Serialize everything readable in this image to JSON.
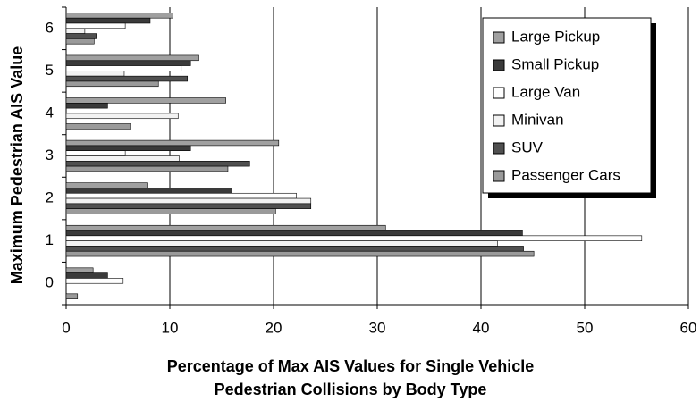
{
  "chart_data": {
    "type": "bar",
    "orientation": "horizontal",
    "x_label": [
      "Percentage of Max AIS Values for Single Vehicle",
      "Pedestrian Collisions by Body Type"
    ],
    "y_label": "Maximum Pedestrian AIS Value",
    "categories": [
      "0",
      "1",
      "2",
      "3",
      "4",
      "5",
      "6"
    ],
    "series": [
      {
        "name": "Large Pickup",
        "color": "#a0a0a0",
        "values": [
          2.6,
          30.8,
          7.8,
          20.5,
          15.4,
          12.8,
          10.3
        ]
      },
      {
        "name": "Small Pickup",
        "color": "#3a3a3a",
        "values": [
          4.0,
          44.0,
          16.0,
          12.0,
          4.0,
          12.0,
          8.1
        ]
      },
      {
        "name": "Large Van",
        "color": "#ffffff",
        "values": [
          5.5,
          55.5,
          22.2,
          5.7,
          0,
          11.1,
          5.7
        ]
      },
      {
        "name": "Minivan",
        "color": "#f2f2f2",
        "values": [
          0,
          41.6,
          23.6,
          10.9,
          10.8,
          5.6,
          1.8
        ]
      },
      {
        "name": "SUV",
        "color": "#505050",
        "values": [
          0,
          44.1,
          23.6,
          17.7,
          0,
          11.7,
          2.9
        ]
      },
      {
        "name": "Passenger Cars",
        "color": "#9a9a9a",
        "values": [
          1.1,
          45.1,
          20.2,
          15.6,
          6.2,
          8.9,
          2.7
        ]
      }
    ],
    "xlim": [
      0,
      60
    ],
    "xticks": [
      0,
      10,
      20,
      30,
      40,
      50,
      60
    ],
    "grid": true,
    "legend": "upper right"
  }
}
